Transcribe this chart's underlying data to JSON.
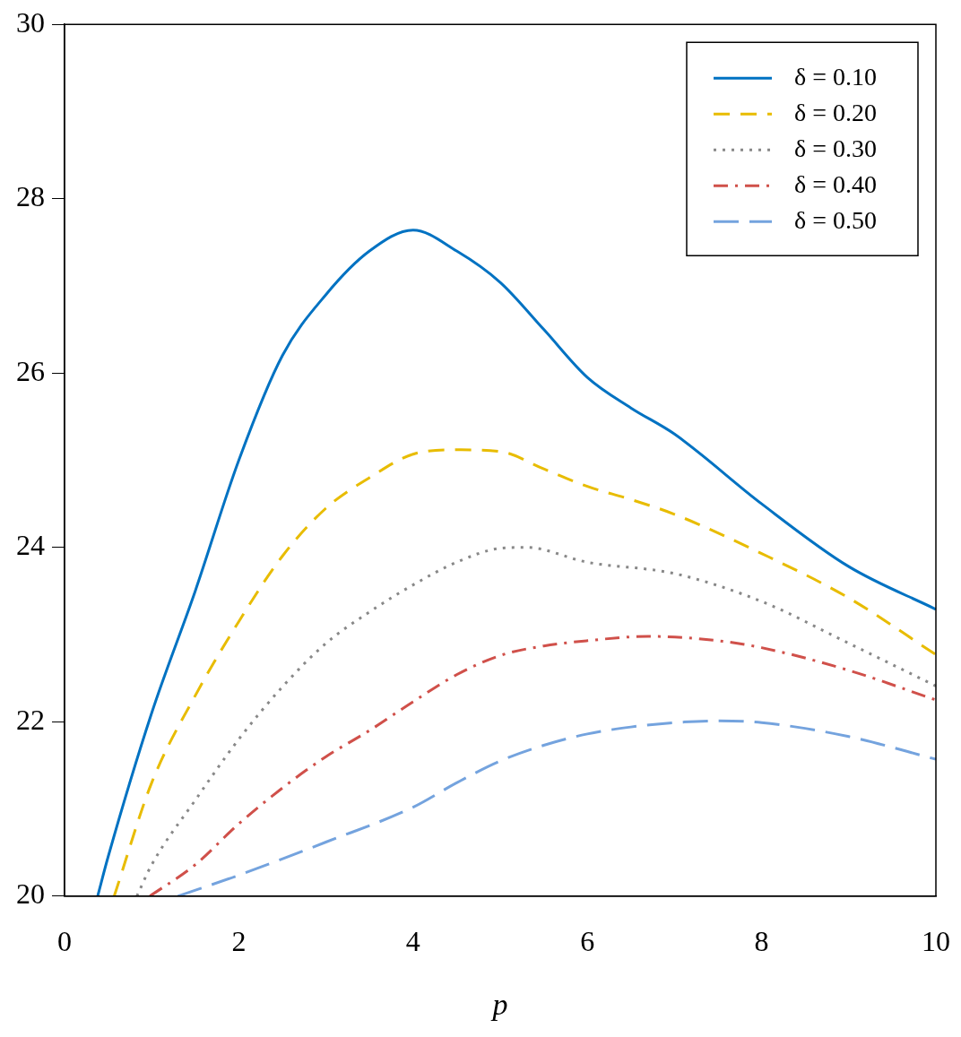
{
  "chart_data": {
    "type": "line",
    "xlabel": "p",
    "xlim": [
      0,
      10
    ],
    "xticks": [
      0,
      2,
      4,
      6,
      8,
      10
    ],
    "ylim": [
      20,
      30
    ],
    "yticks": [
      20,
      22,
      24,
      26,
      28,
      30
    ],
    "grid": false,
    "legend": "top right",
    "marker": "none",
    "series": [
      {
        "name": "δ = 0.10",
        "color": "#0072c2",
        "line_style": "solid",
        "x": [
          0.38,
          0.5,
          1,
          1.5,
          2,
          2.5,
          3,
          3.5,
          4,
          4.5,
          5,
          5.5,
          6,
          6.5,
          7,
          8,
          9,
          10
        ],
        "values": [
          20,
          20.45,
          22.1,
          23.5,
          25,
          26.2,
          26.9,
          27.4,
          27.64,
          27.4,
          27.04,
          26.5,
          25.95,
          25.6,
          25.3,
          24.5,
          23.78,
          23.29
        ]
      },
      {
        "name": "δ = 0.20",
        "color": "#e8bc00",
        "line_style": "dashed",
        "x": [
          0.57,
          1,
          1.5,
          2,
          2.5,
          3,
          3.5,
          4,
          4.5,
          5,
          5.5,
          6,
          6.5,
          7,
          8,
          9,
          10
        ],
        "values": [
          20,
          21.3,
          22.3,
          23.15,
          23.9,
          24.45,
          24.8,
          25.07,
          25.12,
          25.1,
          24.9,
          24.7,
          24.55,
          24.38,
          23.93,
          23.42,
          22.77
        ]
      },
      {
        "name": "δ = 0.30",
        "color": "#888888",
        "line_style": "dotted",
        "x": [
          0.83,
          1,
          1.5,
          2,
          2.5,
          3,
          3.5,
          4,
          4.5,
          5,
          5.3,
          6,
          7,
          8,
          9,
          10
        ],
        "values": [
          20,
          20.36,
          21.1,
          21.8,
          22.4,
          22.9,
          23.26,
          23.57,
          23.83,
          23.99,
          24,
          23.83,
          23.7,
          23.38,
          22.9,
          22.41
        ]
      },
      {
        "name": "δ = 0.40",
        "color": "#d0504a",
        "line_style": "dashdot",
        "x": [
          0.98,
          1.5,
          2,
          2.5,
          3,
          3.5,
          4,
          4.5,
          5,
          5.5,
          6,
          6.7,
          7.5,
          8,
          9,
          10
        ],
        "values": [
          20,
          20.36,
          20.83,
          21.24,
          21.6,
          21.9,
          22.23,
          22.54,
          22.76,
          22.87,
          22.93,
          22.98,
          22.93,
          22.85,
          22.59,
          22.25
        ]
      },
      {
        "name": "δ = 0.50",
        "color": "#74a3de",
        "line_style": "longdash",
        "x": [
          1.3,
          2,
          3,
          4,
          4.5,
          5,
          5.5,
          6,
          6.5,
          7,
          7.5,
          8,
          9,
          10
        ],
        "values": [
          20,
          20.24,
          20.62,
          21.02,
          21.3,
          21.55,
          21.73,
          21.86,
          21.94,
          21.99,
          22.01,
          21.99,
          21.83,
          21.57
        ]
      }
    ]
  }
}
